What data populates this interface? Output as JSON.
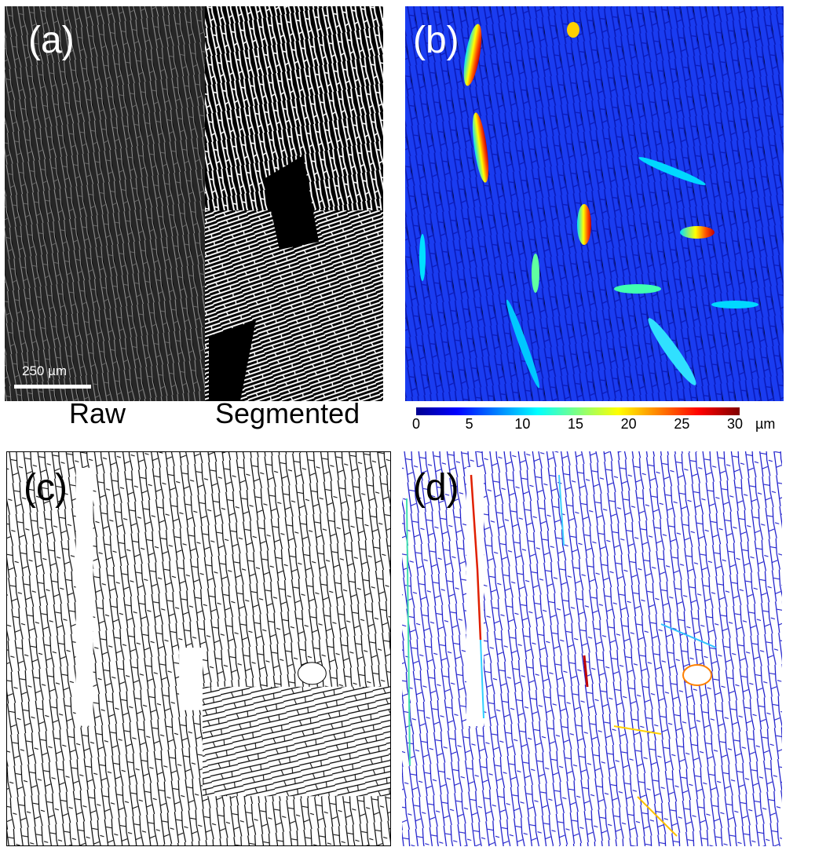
{
  "panels": {
    "a": {
      "label": "(a)",
      "scale_bar": "250 µm",
      "caption_left": "Raw",
      "caption_right": "Segmented"
    },
    "b": {
      "label": "(b)"
    },
    "c": {
      "label": "(c)"
    },
    "d": {
      "label": "(d)"
    }
  },
  "colorbar": {
    "ticks": [
      "0",
      "5",
      "10",
      "15",
      "20",
      "25",
      "30"
    ],
    "unit": "µm",
    "colormap": "jet",
    "colors": [
      "#00008f",
      "#0000ff",
      "#0080ff",
      "#00ffff",
      "#80ff80",
      "#ffff00",
      "#ff8000",
      "#ff0000",
      "#800000"
    ]
  }
}
